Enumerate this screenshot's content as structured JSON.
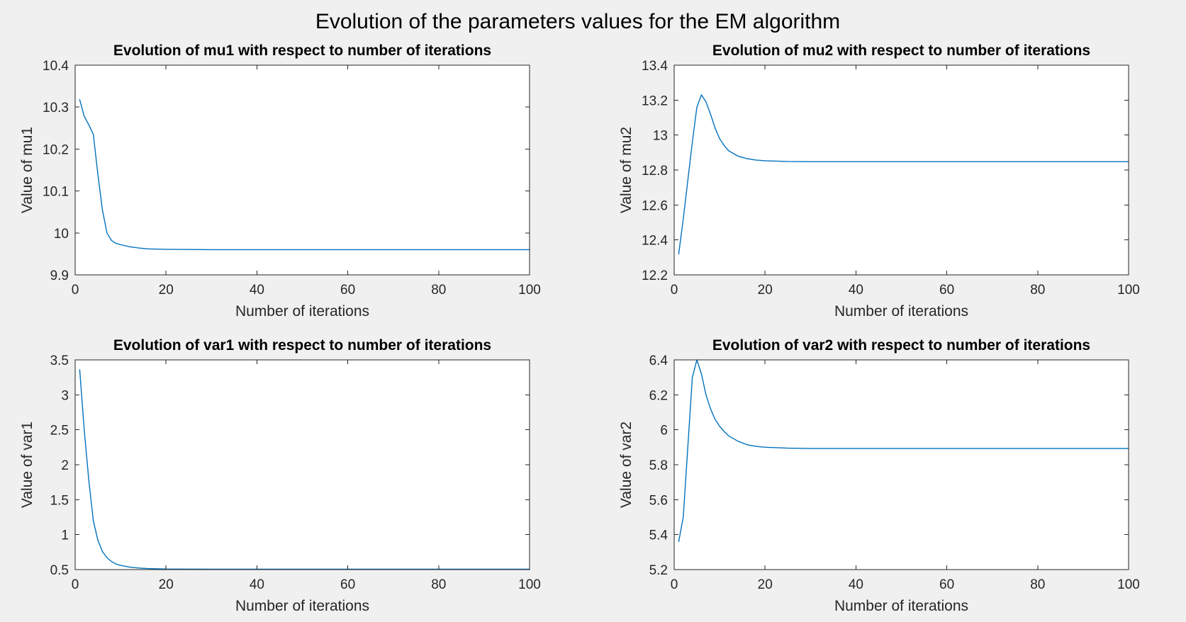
{
  "figure": {
    "title": "Evolution of the parameters values for the EM algorithm"
  },
  "chart_data": [
    {
      "type": "line",
      "title": "Evolution of mu1 with respect to number of iterations",
      "xlabel": "Number of iterations",
      "ylabel": "Value of mu1",
      "xlim": [
        0,
        100
      ],
      "ylim": [
        9.9,
        10.4
      ],
      "xticks": [
        "0",
        "20",
        "40",
        "60",
        "80",
        "100"
      ],
      "yticks": [
        "9.9",
        "10",
        "10.1",
        "10.2",
        "10.3",
        "10.4"
      ],
      "grid": false,
      "line_color": "#0072bd",
      "points": [
        [
          1,
          10.318
        ],
        [
          2,
          10.278
        ],
        [
          3,
          10.258
        ],
        [
          4,
          10.235
        ],
        [
          5,
          10.14
        ],
        [
          6,
          10.055
        ],
        [
          7,
          10.0
        ],
        [
          8,
          9.982
        ],
        [
          9,
          9.975
        ],
        [
          10,
          9.972
        ],
        [
          12,
          9.967
        ],
        [
          14,
          9.964
        ],
        [
          16,
          9.962
        ],
        [
          20,
          9.961
        ],
        [
          30,
          9.96
        ],
        [
          50,
          9.96
        ],
        [
          100,
          9.96
        ]
      ]
    },
    {
      "type": "line",
      "title": "Evolution of mu2 with respect to number of iterations",
      "xlabel": "Number of iterations",
      "ylabel": "Value of mu2",
      "xlim": [
        0,
        100
      ],
      "ylim": [
        12.2,
        13.4
      ],
      "xticks": [
        "0",
        "20",
        "40",
        "60",
        "80",
        "100"
      ],
      "yticks": [
        "12.2",
        "12.4",
        "12.6",
        "12.8",
        "13",
        "13.2",
        "13.4"
      ],
      "grid": false,
      "line_color": "#0072bd",
      "points": [
        [
          1,
          12.32
        ],
        [
          2,
          12.52
        ],
        [
          3,
          12.74
        ],
        [
          4,
          12.96
        ],
        [
          5,
          13.16
        ],
        [
          6,
          13.23
        ],
        [
          7,
          13.19
        ],
        [
          8,
          13.12
        ],
        [
          9,
          13.04
        ],
        [
          10,
          12.98
        ],
        [
          11,
          12.94
        ],
        [
          12,
          12.91
        ],
        [
          14,
          12.88
        ],
        [
          16,
          12.865
        ],
        [
          18,
          12.857
        ],
        [
          20,
          12.853
        ],
        [
          25,
          12.849
        ],
        [
          30,
          12.848
        ],
        [
          100,
          12.848
        ]
      ]
    },
    {
      "type": "line",
      "title": "Evolution of var1 with respect to number of iterations",
      "xlabel": "Number of iterations",
      "ylabel": "Value of var1",
      "xlim": [
        0,
        100
      ],
      "ylim": [
        0.5,
        3.5
      ],
      "xticks": [
        "0",
        "20",
        "40",
        "60",
        "80",
        "100"
      ],
      "yticks": [
        "0.5",
        "1",
        "1.5",
        "2",
        "2.5",
        "3",
        "3.5"
      ],
      "grid": false,
      "line_color": "#0072bd",
      "points": [
        [
          1,
          3.36
        ],
        [
          2,
          2.5
        ],
        [
          3,
          1.78
        ],
        [
          4,
          1.2
        ],
        [
          5,
          0.92
        ],
        [
          6,
          0.76
        ],
        [
          7,
          0.67
        ],
        [
          8,
          0.615
        ],
        [
          9,
          0.58
        ],
        [
          10,
          0.56
        ],
        [
          12,
          0.535
        ],
        [
          14,
          0.522
        ],
        [
          16,
          0.515
        ],
        [
          20,
          0.508
        ],
        [
          30,
          0.505
        ],
        [
          100,
          0.505
        ]
      ]
    },
    {
      "type": "line",
      "title": "Evolution of var2 with respect to number of iterations",
      "xlabel": "Number of iterations",
      "ylabel": "Value of var2",
      "xlim": [
        0,
        100
      ],
      "ylim": [
        5.2,
        6.4
      ],
      "xticks": [
        "0",
        "20",
        "40",
        "60",
        "80",
        "100"
      ],
      "yticks": [
        "5.2",
        "5.4",
        "5.6",
        "5.8",
        "6",
        "6.2",
        "6.4"
      ],
      "grid": false,
      "line_color": "#0072bd",
      "points": [
        [
          1,
          5.36
        ],
        [
          2,
          5.5
        ],
        [
          3,
          5.9
        ],
        [
          4,
          6.3
        ],
        [
          5,
          6.4
        ],
        [
          6,
          6.32
        ],
        [
          7,
          6.2
        ],
        [
          8,
          6.12
        ],
        [
          9,
          6.06
        ],
        [
          10,
          6.02
        ],
        [
          11,
          5.99
        ],
        [
          12,
          5.965
        ],
        [
          14,
          5.935
        ],
        [
          16,
          5.915
        ],
        [
          18,
          5.905
        ],
        [
          20,
          5.9
        ],
        [
          25,
          5.895
        ],
        [
          30,
          5.893
        ],
        [
          100,
          5.893
        ]
      ]
    }
  ]
}
